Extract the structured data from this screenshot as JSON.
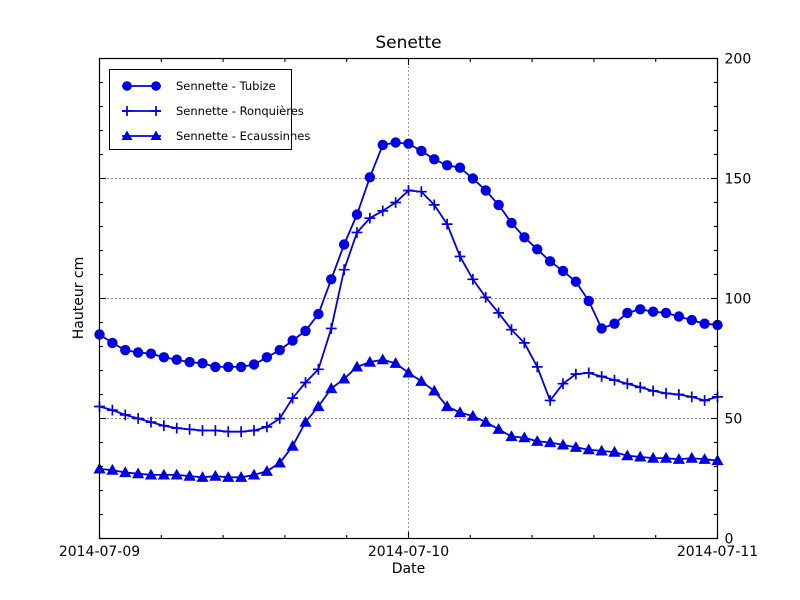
{
  "figure": {
    "title": "Senette",
    "xlabel": "Date",
    "ylabel": "Hauteur cm"
  },
  "chart_data": {
    "type": "line",
    "title": "Senette",
    "xlabel": "Date",
    "ylabel": "Hauteur cm",
    "line_color": "#0000e0",
    "background_color": "#ffffff",
    "legend_position": "upper-left",
    "grid": {
      "style": "dotted",
      "horizontal_lines_at_y": [
        50,
        100,
        150
      ],
      "vertical_lines_at_hour": [
        24
      ]
    },
    "x_axis": {
      "unit": "hours since 2014-07-09 00:00",
      "range_hours": [
        0,
        48
      ],
      "major_tick_hours": [
        0,
        24,
        48
      ],
      "tick_labels": [
        "2014-07-09",
        "2014-07-10",
        "2014-07-11"
      ],
      "minor_tick_step_hours": 4.8
    },
    "y_axis": {
      "range": [
        0,
        200
      ],
      "major_ticks": [
        0,
        50,
        100,
        150,
        200
      ],
      "minor_tick_step": 10,
      "labels_side": "right"
    },
    "series": [
      {
        "name": "Sennette - Tubize",
        "marker": "circle",
        "color": "#0000e0",
        "hours_step": 1,
        "values": [
          85,
          81.5,
          78.5,
          77.5,
          77,
          75.5,
          74.5,
          73.5,
          73,
          71.5,
          71.5,
          71.5,
          72.5,
          75.5,
          78.5,
          82.5,
          86.5,
          93.5,
          108,
          122.5,
          135,
          150.5,
          164,
          165,
          164.5,
          161.5,
          158,
          155.5,
          154.5,
          150,
          145,
          139,
          131.5,
          125.5,
          120.5,
          115.5,
          111.5,
          107,
          99,
          87.5,
          89.5,
          94,
          95.5,
          94.5,
          94,
          92.5,
          91,
          89.5,
          89
        ]
      },
      {
        "name": "Sennette - Ronquières",
        "marker": "plus",
        "color": "#0000e0",
        "hours_step": 1,
        "values": [
          55,
          53.5,
          51.5,
          50,
          48.5,
          47,
          46,
          45.5,
          45,
          45,
          44.5,
          44.5,
          45,
          46.5,
          50,
          58.5,
          65,
          70.5,
          87.5,
          112,
          127.5,
          133.5,
          136.5,
          140,
          145,
          144.5,
          139,
          131,
          117.5,
          108,
          100.5,
          94,
          87,
          81.5,
          71.5,
          57.5,
          64.5,
          68.5,
          69,
          67.5,
          66,
          64.5,
          63,
          61.5,
          60.5,
          60,
          59,
          57.5,
          59
        ]
      },
      {
        "name": "Sennette - Ecaussinnes",
        "marker": "triangle",
        "color": "#0000e0",
        "hours_step": 1,
        "values": [
          29,
          28.5,
          27.5,
          27,
          26.5,
          26.5,
          26.5,
          26,
          25.5,
          26,
          25.5,
          25.5,
          26.5,
          28,
          31.5,
          38.5,
          48.5,
          55,
          62.5,
          66.5,
          71.5,
          73.5,
          74.5,
          73,
          69,
          65.5,
          61.5,
          55,
          52.5,
          51,
          48.5,
          45.5,
          42.5,
          42,
          40.5,
          40,
          39,
          38,
          37,
          36.5,
          36,
          34.5,
          34,
          33.5,
          33.5,
          33,
          33.5,
          33,
          32.5
        ]
      }
    ]
  }
}
